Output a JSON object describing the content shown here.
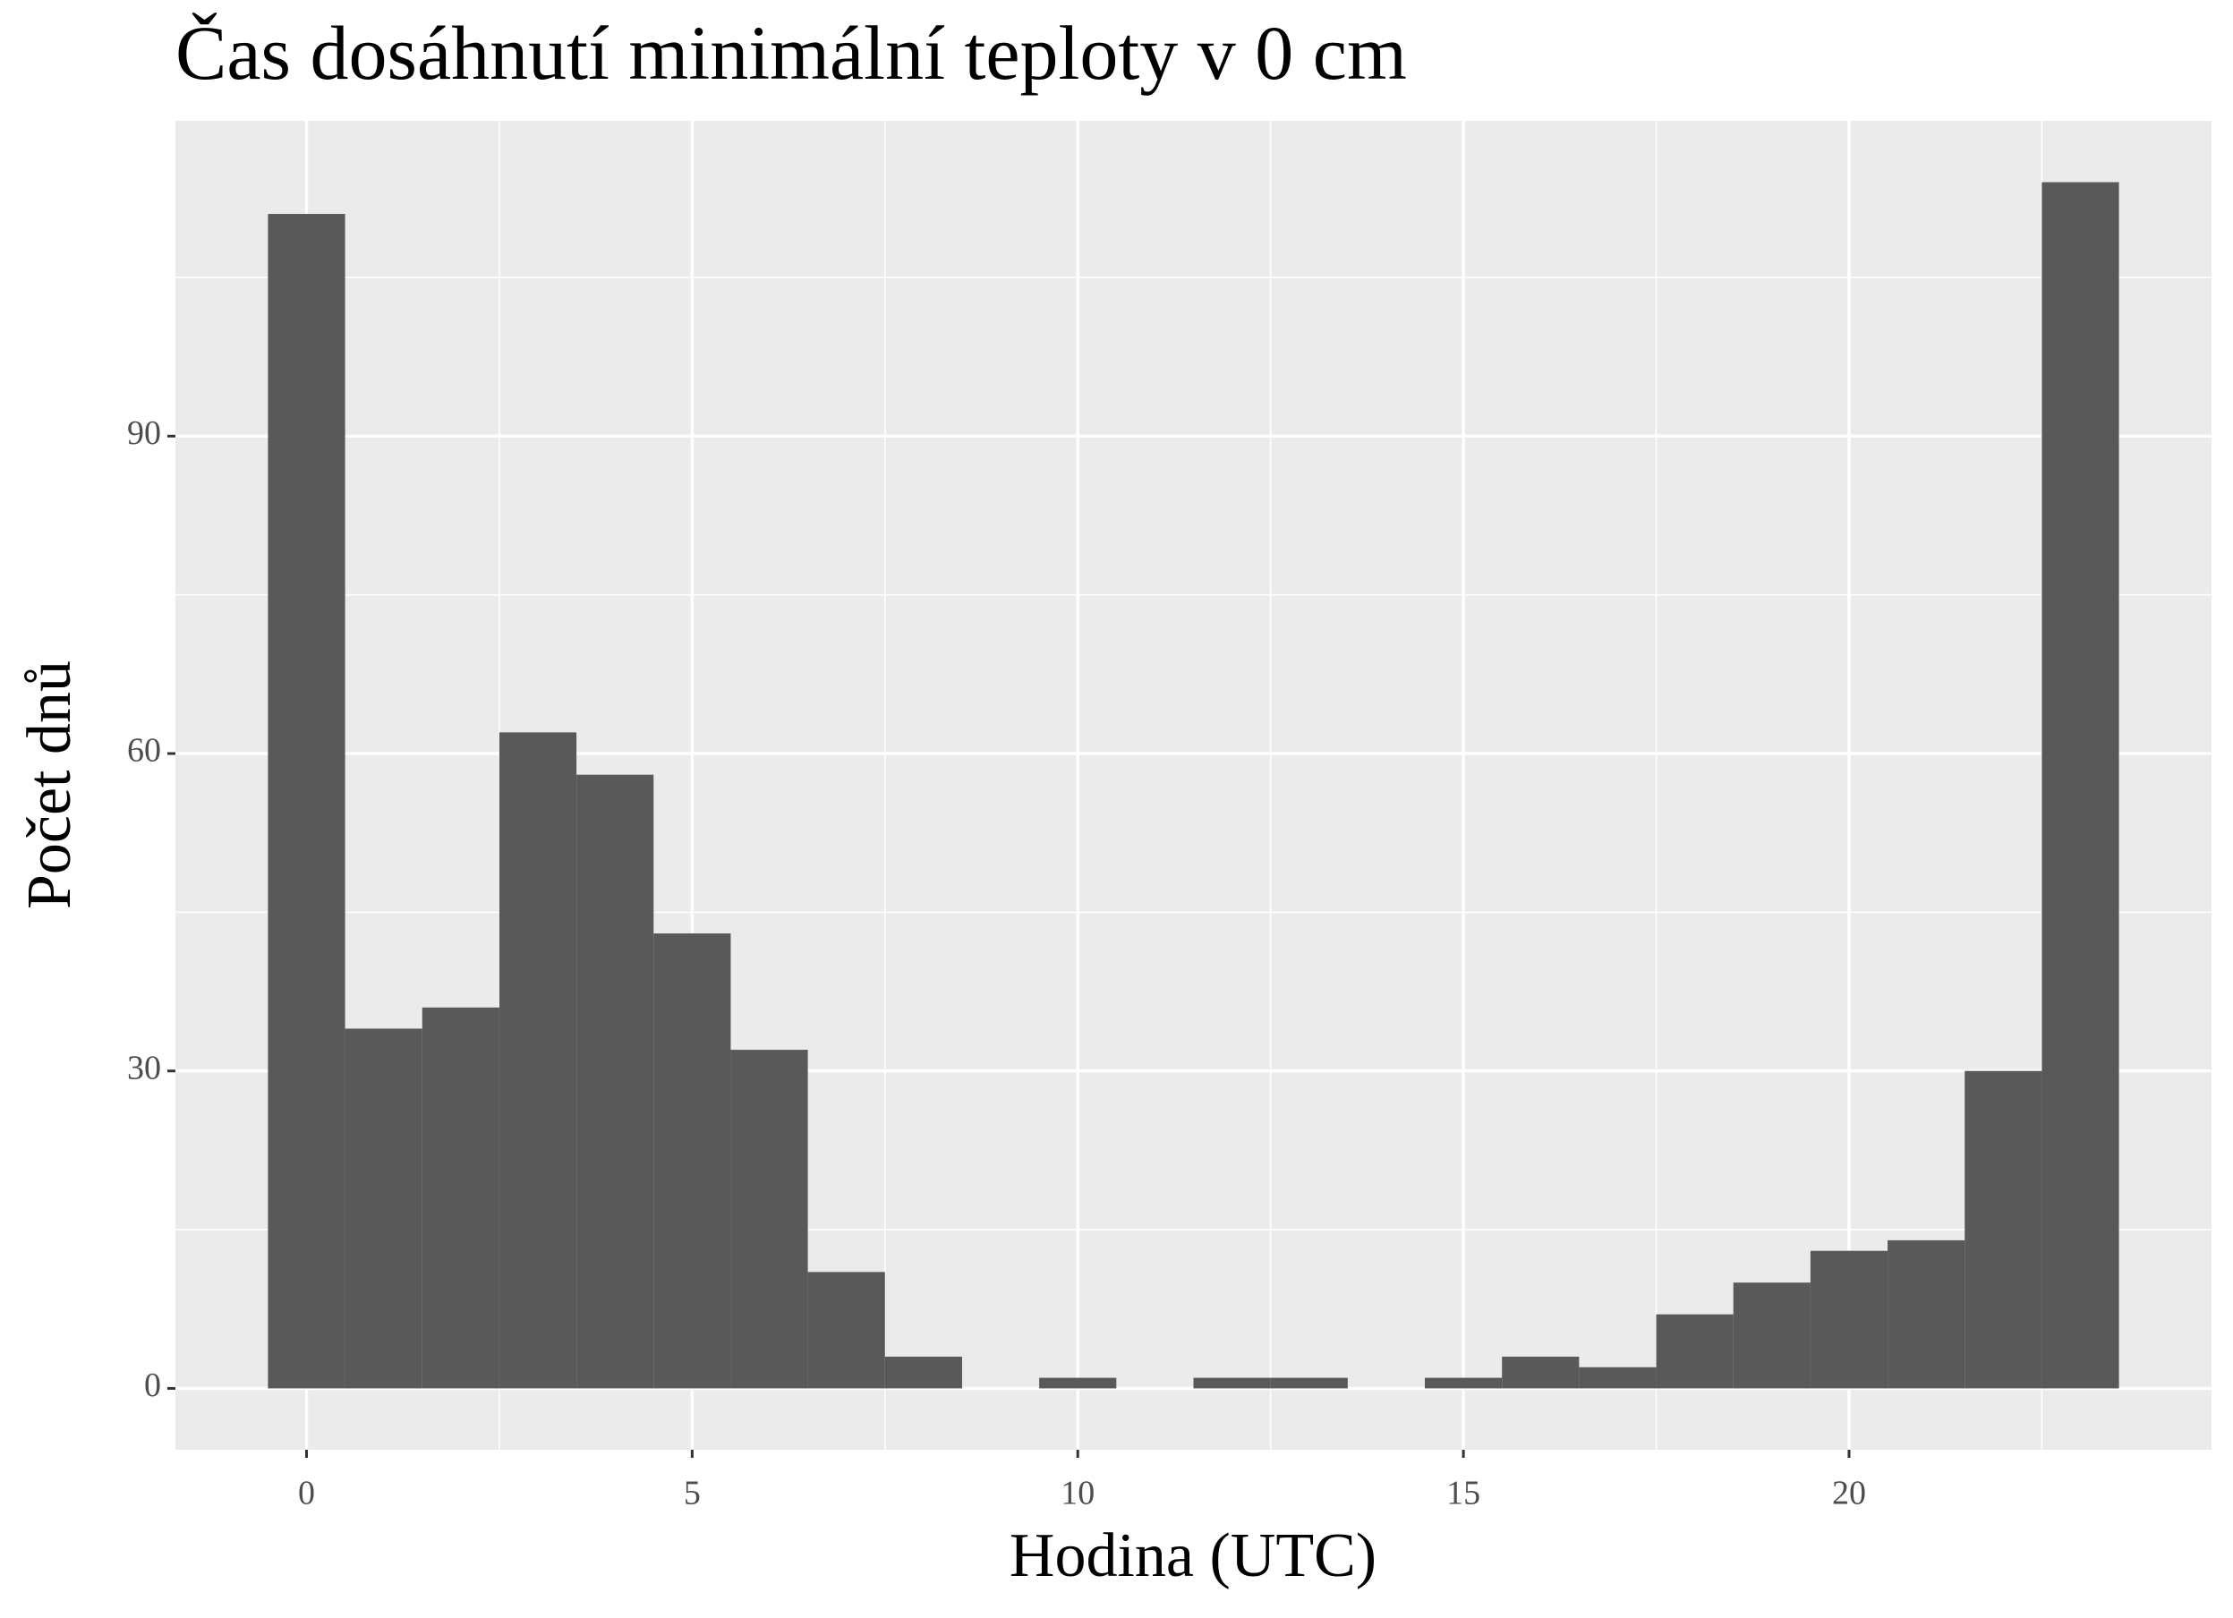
{
  "chart_data": {
    "type": "histogram",
    "title": "Čas dosáhnutí minimální teploty v 0 cm",
    "x_label": "Hodina (UTC)",
    "y_label": "Počet dnů",
    "bins": [
      -0.5,
      0.5,
      1.5,
      2.5,
      3.5,
      4.5,
      5.5,
      6.5,
      7.5,
      8.5,
      9.5,
      10.5,
      11.5,
      12.5,
      13.5,
      14.5,
      15.5,
      16.5,
      17.5,
      18.5,
      19.5,
      20.5,
      21.5,
      22.5,
      23.5
    ],
    "counts": [
      111,
      34,
      36,
      62,
      58,
      43,
      32,
      11,
      3,
      0,
      1,
      0,
      1,
      1,
      0,
      1,
      3,
      2,
      7,
      10,
      13,
      14,
      30,
      114
    ],
    "color": "#595959",
    "xlim": [
      -1.7,
      24.7
    ],
    "xticks": [
      0,
      5,
      10,
      15,
      20
    ],
    "ylim": [
      -5.8,
      119.8
    ],
    "yticks": [
      0,
      30,
      60,
      90
    ],
    "grid": true
  }
}
